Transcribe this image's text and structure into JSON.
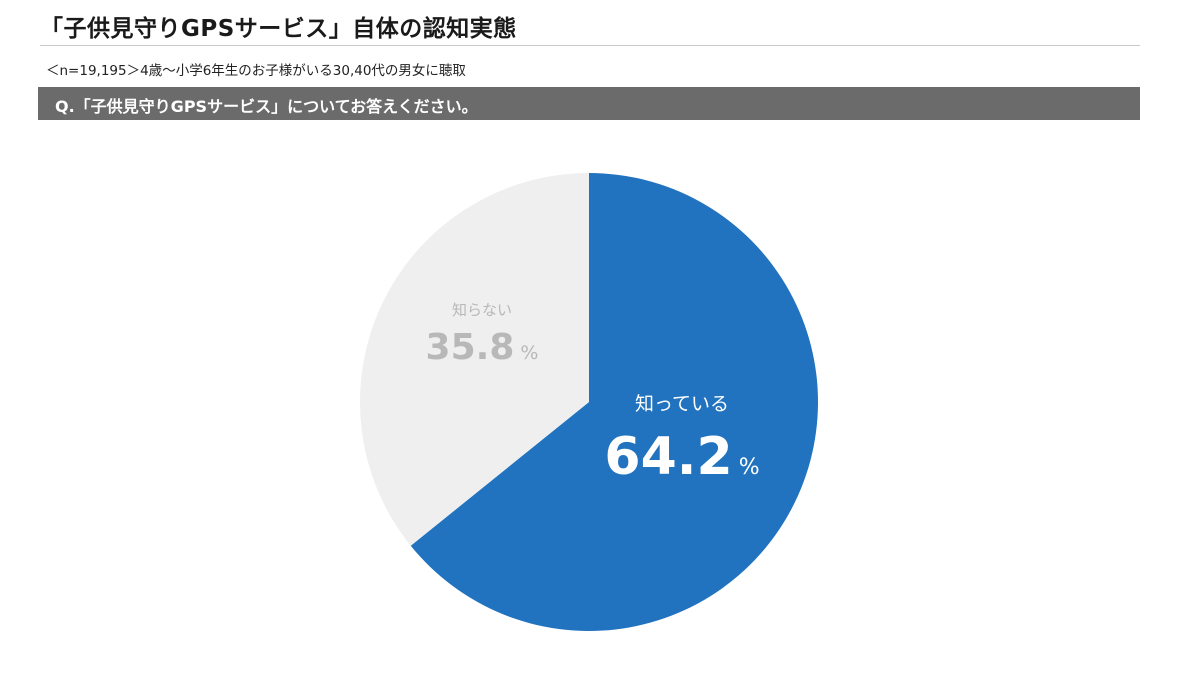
{
  "header": {
    "title": "「子供見守りGPSサービス」自体の認知実態",
    "subtitle": "＜n=19,195＞4歳〜小学6年生のお子様がいる30,40代の男女に聴取",
    "question": "Q.「子供見守りGPSサービス」についてお答えください。"
  },
  "chart_data": {
    "type": "pie",
    "unit": "%",
    "slices": [
      {
        "label": "知っている",
        "value": 64.2,
        "color": "#2173bf",
        "text_color": "#ffffff"
      },
      {
        "label": "知らない",
        "value": 35.8,
        "color": "#efefef",
        "text_color": "#b8b8b8"
      }
    ]
  }
}
